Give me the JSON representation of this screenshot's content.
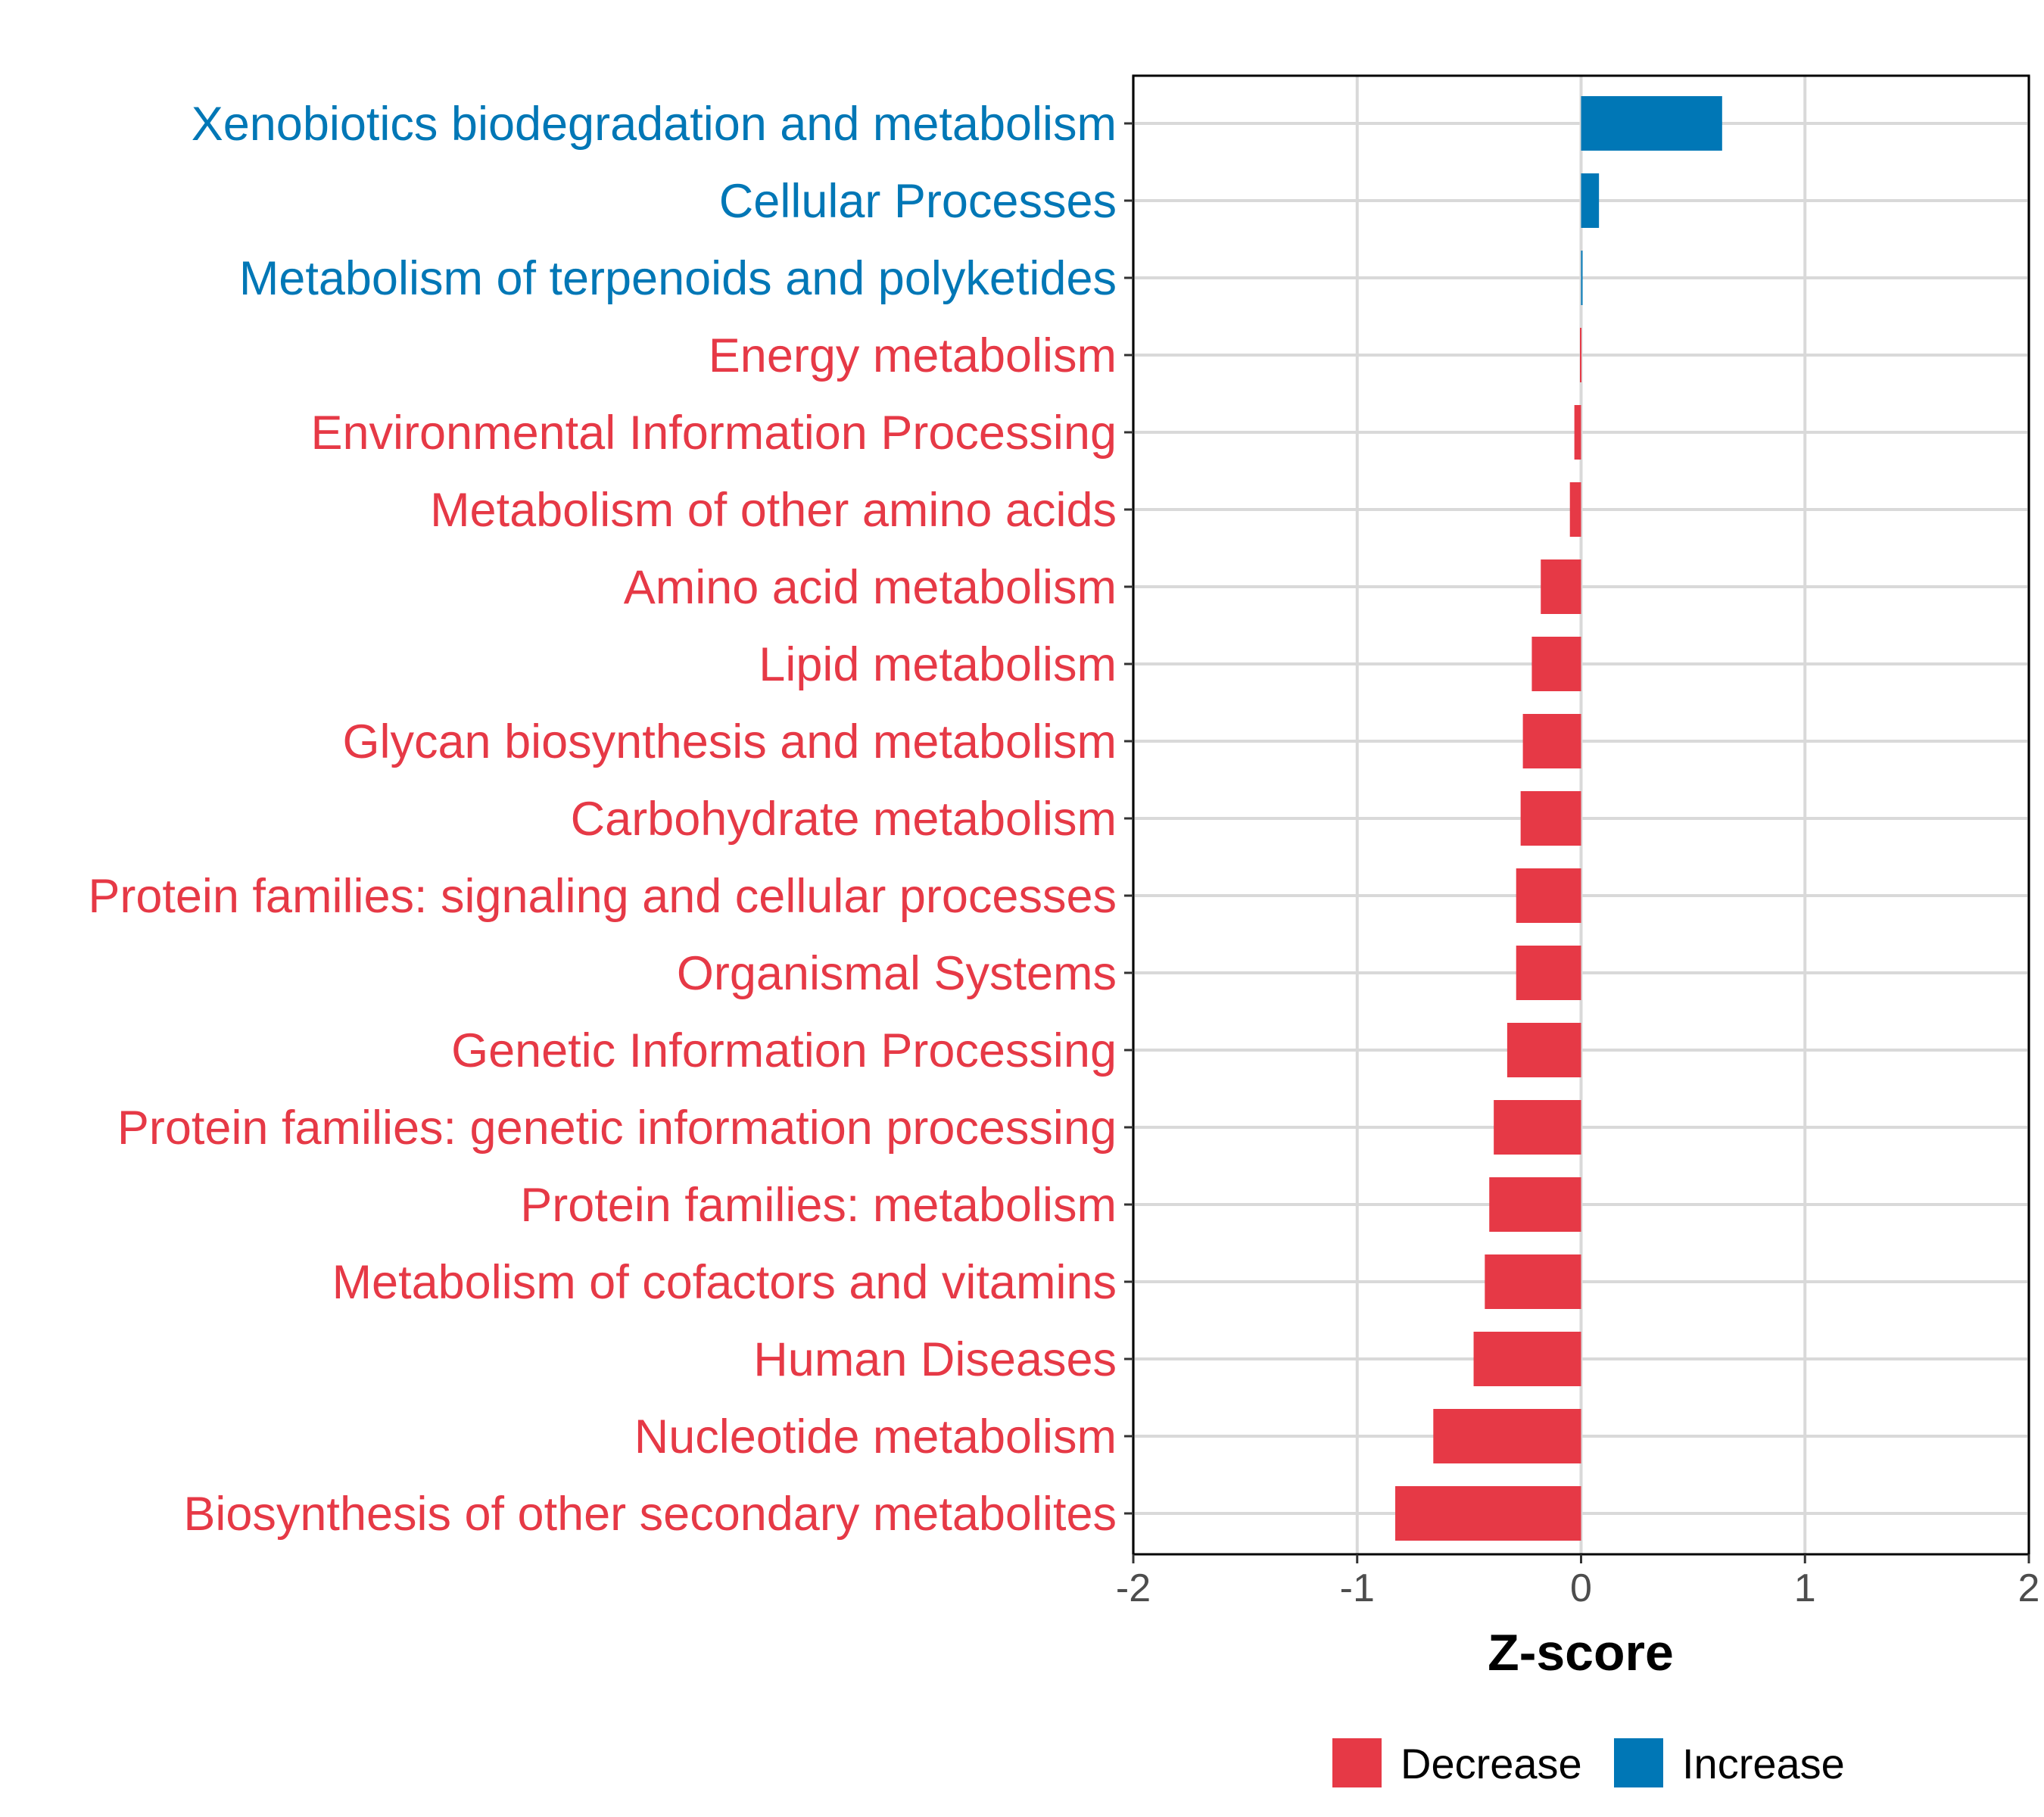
{
  "chart_data": {
    "type": "bar",
    "orientation": "horizontal",
    "title": "",
    "xlabel": "Z-score",
    "ylabel": "",
    "xlim": [
      -2,
      2
    ],
    "x_ticks": [
      {
        "value": -2,
        "label": "-2"
      },
      {
        "value": -1,
        "label": "-1"
      },
      {
        "value": 0,
        "label": "0"
      },
      {
        "value": 1,
        "label": "1"
      },
      {
        "value": 2,
        "label": "2"
      }
    ],
    "grid": true,
    "legend_position": "bottom",
    "colors": {
      "Decrease": "#e63946",
      "Increase": "#0077b6"
    },
    "legend": [
      {
        "label": "Decrease",
        "color": "#e63946"
      },
      {
        "label": "Increase",
        "color": "#0077b6"
      }
    ],
    "categories": [
      "Xenobiotics biodegradation and metabolism",
      "Cellular Processes",
      "Metabolism of terpenoids and polyketides",
      "Energy metabolism",
      "Environmental Information Processing",
      "Metabolism of other amino acids",
      "Amino acid metabolism",
      "Lipid metabolism",
      "Glycan biosynthesis and metabolism",
      "Carbohydrate metabolism",
      "Protein families: signaling and cellular processes",
      "Organismal Systems",
      "Genetic Information Processing",
      "Protein families: genetic information processing",
      "Protein families: metabolism",
      "Metabolism of cofactors and vitamins",
      "Human Diseases",
      "Nucleotide metabolism",
      "Biosynthesis of other secondary metabolites"
    ],
    "values": [
      0.63,
      0.08,
      0.005,
      -0.005,
      -0.03,
      -0.05,
      -0.18,
      -0.22,
      -0.26,
      -0.27,
      -0.29,
      -0.29,
      -0.33,
      -0.39,
      -0.41,
      -0.43,
      -0.48,
      -0.66,
      -0.83
    ],
    "groups": [
      "Increase",
      "Increase",
      "Increase",
      "Decrease",
      "Decrease",
      "Decrease",
      "Decrease",
      "Decrease",
      "Decrease",
      "Decrease",
      "Decrease",
      "Decrease",
      "Decrease",
      "Decrease",
      "Decrease",
      "Decrease",
      "Decrease",
      "Decrease",
      "Decrease"
    ]
  }
}
